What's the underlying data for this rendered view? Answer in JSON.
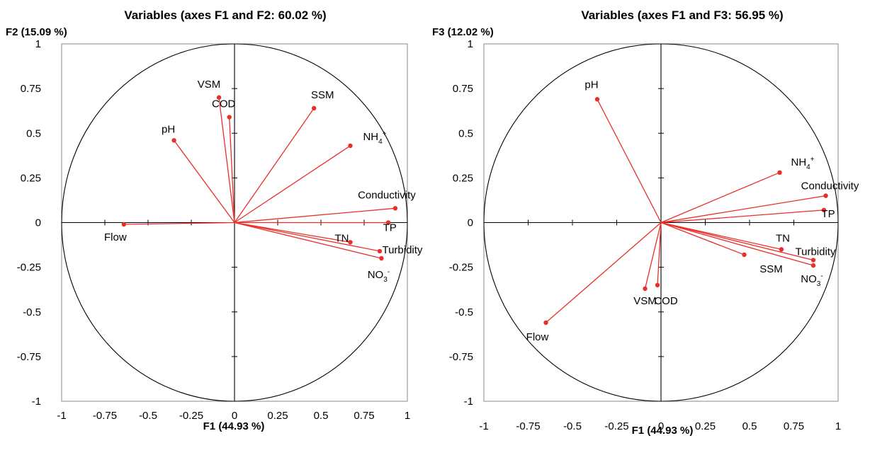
{
  "chart_data": [
    {
      "type": "scatter",
      "subtype": "correlation-circle",
      "title": "Variables (axes F1 and F2: 60.02 %)",
      "xlabel": "F1 (44.93 %)",
      "ylabel": "F2 (15.09 %)",
      "xlim": [
        -1,
        1
      ],
      "ylim": [
        -1,
        1
      ],
      "xticks": [
        "-1",
        "-0.75",
        "-0.5",
        "-0.25",
        "0",
        "0.25",
        "0.5",
        "0.75",
        "1"
      ],
      "yticks": [
        "-1",
        "-0.75",
        "-0.5",
        "-0.25",
        "0",
        "0.25",
        "0.5",
        "0.75",
        "1"
      ],
      "grid": false,
      "legend": "none",
      "color": "#e8302a",
      "points": [
        {
          "name": "Flow",
          "x": -0.64,
          "y": -0.01
        },
        {
          "name": "pH",
          "x": -0.35,
          "y": 0.46
        },
        {
          "name": "VSM",
          "x": -0.09,
          "y": 0.7
        },
        {
          "name": "COD",
          "x": -0.03,
          "y": 0.59
        },
        {
          "name": "SSM",
          "x": 0.46,
          "y": 0.64
        },
        {
          "name": "NH",
          "sub": "4",
          "sup": "+",
          "x": 0.67,
          "y": 0.43
        },
        {
          "name": "Conductivity",
          "x": 0.93,
          "y": 0.08
        },
        {
          "name": "TP",
          "x": 0.89,
          "y": 0.0
        },
        {
          "name": "TN",
          "x": 0.67,
          "y": -0.11
        },
        {
          "name": "Turbidity",
          "x": 0.84,
          "y": -0.16
        },
        {
          "name": "NO",
          "sub": "3",
          "sup": "-",
          "x": 0.85,
          "y": -0.2
        }
      ]
    },
    {
      "type": "scatter",
      "subtype": "correlation-circle",
      "title": "Variables (axes F1 and F3: 56.95 %)",
      "xlabel": "F1 (44.93 %)",
      "ylabel": "F3 (12.02 %)",
      "xlim": [
        -1,
        1
      ],
      "ylim": [
        -1,
        1
      ],
      "xticks": [
        "-1",
        "-0.75",
        "-0.5",
        "-0.25",
        "0",
        "0.25",
        "0.5",
        "0.75",
        "1"
      ],
      "yticks": [
        "-1",
        "-0.75",
        "-0.5",
        "-0.25",
        "0",
        "0.25",
        "0.5",
        "0.75",
        "1"
      ],
      "grid": false,
      "legend": "none",
      "color": "#e8302a",
      "points": [
        {
          "name": "pH",
          "x": -0.36,
          "y": 0.69
        },
        {
          "name": "NH",
          "sub": "4",
          "sup": "+",
          "x": 0.67,
          "y": 0.28
        },
        {
          "name": "Conductivity",
          "x": 0.93,
          "y": 0.15
        },
        {
          "name": "TP",
          "x": 0.92,
          "y": 0.07
        },
        {
          "name": "TN",
          "x": 0.68,
          "y": -0.15
        },
        {
          "name": "Turbidity",
          "x": 0.86,
          "y": -0.21
        },
        {
          "name": "NO",
          "sub": "3",
          "sup": "-",
          "x": 0.86,
          "y": -0.24
        },
        {
          "name": "SSM",
          "x": 0.47,
          "y": -0.18
        },
        {
          "name": "COD",
          "x": -0.02,
          "y": -0.35
        },
        {
          "name": "VSM",
          "x": -0.09,
          "y": -0.37
        },
        {
          "name": "Flow",
          "x": -0.65,
          "y": -0.56
        }
      ]
    }
  ]
}
